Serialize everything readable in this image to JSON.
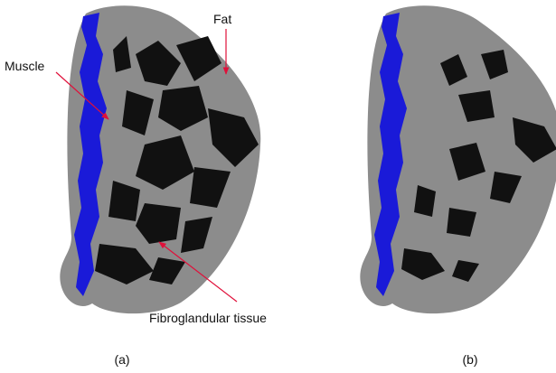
{
  "labels": {
    "fat": "Fat",
    "muscle": "Muscle",
    "fibroglandular": "Fibroglandular tissue"
  },
  "captions": [
    "(a)",
    "(b)"
  ]
}
